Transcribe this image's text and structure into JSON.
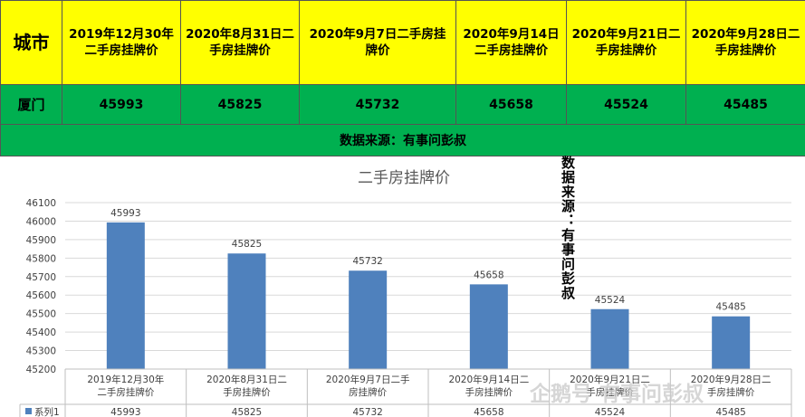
{
  "table": {
    "city_header": "城市",
    "columns": [
      "2019年12月30年二手房挂牌价",
      "2020年8月31日二手房挂牌价",
      "2020年9月7日二手房挂牌价",
      "2020年9月14日二手房挂牌价",
      "2020年9月21日二手房挂牌价",
      "2020年9月28日二手房挂牌价"
    ],
    "row_city": "厦门",
    "row_values": [
      "45993",
      "45825",
      "45732",
      "45658",
      "45524",
      "45485"
    ],
    "source": "数据来源：有事问彭叔"
  },
  "vertical_note": "数据来源：有事问彭叔",
  "watermark": "企鹅号 有事问彭叔",
  "chart_data": {
    "type": "bar",
    "title": "二手房挂牌价",
    "categories": [
      "2019年12月30年二手房挂牌价",
      "2020年8月31日二手房挂牌价",
      "2020年9月7日二手房挂牌价",
      "2020年9月14日二手房挂牌价",
      "2020年9月21日二手房挂牌价",
      "2020年9月28日二手房挂牌价"
    ],
    "series": [
      {
        "name": "系列1",
        "values": [
          45993,
          45825,
          45732,
          45658,
          45524,
          45485
        ],
        "color": "#4f81bd"
      }
    ],
    "ylim": [
      45200,
      46100
    ],
    "yticks": [
      45200,
      45300,
      45400,
      45500,
      45600,
      45700,
      45800,
      45900,
      46000,
      46100
    ],
    "grid": true,
    "data_table": true
  }
}
